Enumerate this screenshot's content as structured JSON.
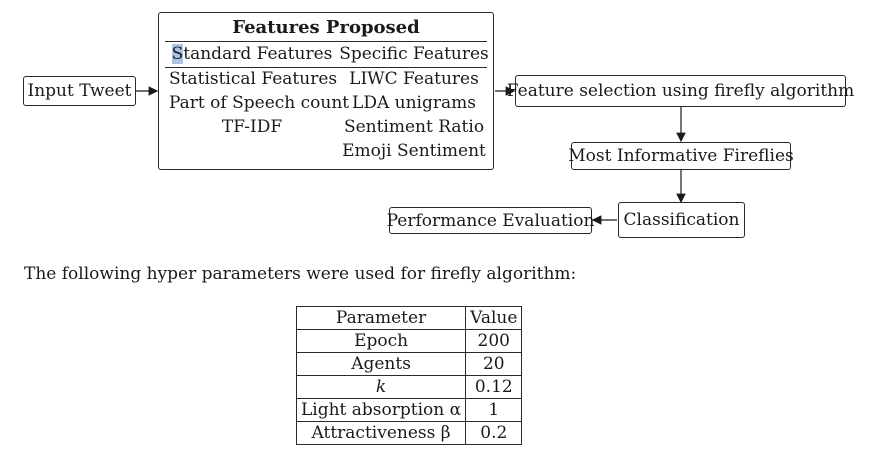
{
  "diagram": {
    "input": "Input Tweet",
    "features": {
      "title": "Features Proposed",
      "standard_header": "Standard Features",
      "specific_header": "Specific Features",
      "standard": [
        "Statistical Features",
        "Part of Speech count",
        "TF-IDF"
      ],
      "specific": [
        "LIWC Features",
        "LDA unigrams",
        "Sentiment Ratio",
        "Emoji Sentiment"
      ]
    },
    "selection": "Feature selection using firefly algorithm",
    "informative": "Most Informative Fireflies",
    "classification": "Classification",
    "evaluation": "Performance Evaluation"
  },
  "intro_text": "The following hyper parameters were used for firefly algorithm:",
  "table": {
    "headers": [
      "Parameter",
      "Value"
    ],
    "rows": [
      [
        "Epoch",
        "200"
      ],
      [
        "Agents",
        "20"
      ],
      [
        "k",
        "0.12"
      ],
      [
        "Light absorption α",
        "1"
      ],
      [
        "Attractiveness β",
        "0.2"
      ]
    ]
  }
}
